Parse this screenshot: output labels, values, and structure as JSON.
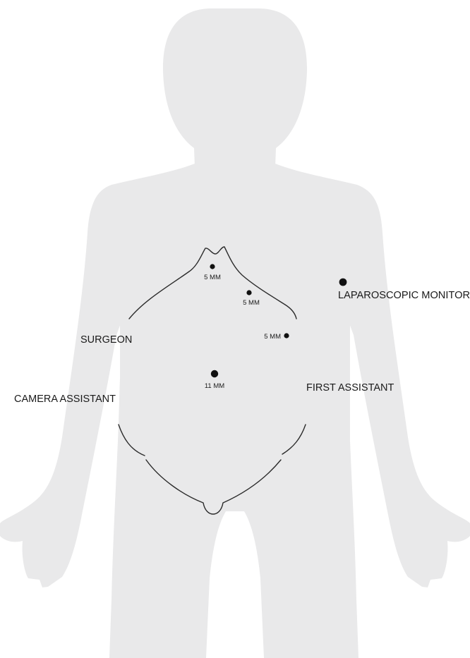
{
  "ports": {
    "p1": {
      "label": "5 MM"
    },
    "p2": {
      "label": "5 MM"
    },
    "p3": {
      "label": "5 MM"
    },
    "p4": {
      "label": "11 MM"
    }
  },
  "positions": {
    "surgeon": "SURGEON",
    "camera_assistant": "CAMERA ASSISTANT",
    "first_assistant": "FIRST ASSISTANT",
    "monitor": "LAPAROSCOPIC MONITOR"
  },
  "colors": {
    "body": "#e9e9ea",
    "line": "#2b2b2b",
    "marker": "#111111",
    "text": "#1a1a1a"
  }
}
